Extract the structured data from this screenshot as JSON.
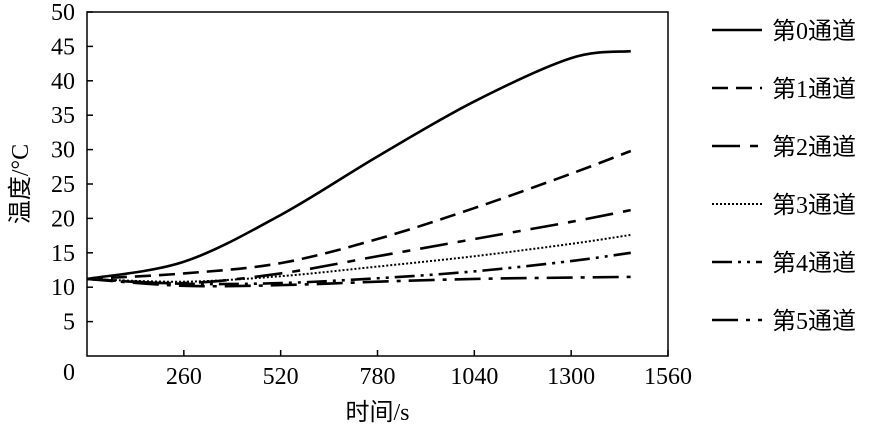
{
  "chart_data": {
    "type": "line",
    "xlabel": "时间/s",
    "ylabel": "温度/°C",
    "xlim": [
      0,
      1560
    ],
    "ylim": [
      0,
      50
    ],
    "xticks": [
      0,
      260,
      520,
      780,
      1040,
      1300,
      1560
    ],
    "yticks": [
      5,
      10,
      15,
      20,
      25,
      30,
      35,
      40,
      45,
      50
    ],
    "y0_label": "0",
    "grid": false,
    "legend_position": "right",
    "x": [
      0,
      260,
      520,
      780,
      1040,
      1300,
      1460
    ],
    "series": [
      {
        "name": "第0通道",
        "style": "solid",
        "values": [
          11.2,
          13.7,
          20.5,
          29.0,
          37.0,
          43.3,
          44.3
        ]
      },
      {
        "name": "第1通道",
        "style": "dashed",
        "values": [
          11.2,
          12.0,
          13.5,
          17.0,
          21.5,
          26.5,
          29.8
        ]
      },
      {
        "name": "第2通道",
        "style": "longdash-short",
        "values": [
          11.2,
          10.6,
          12.0,
          14.5,
          17.0,
          19.5,
          21.2
        ]
      },
      {
        "name": "第3通道",
        "style": "dotted",
        "values": [
          11.2,
          10.8,
          11.6,
          13.0,
          14.5,
          16.3,
          17.6
        ]
      },
      {
        "name": "第4通道",
        "style": "dash-dot-dot",
        "values": [
          11.2,
          10.5,
          10.6,
          11.3,
          12.3,
          13.8,
          15.0
        ]
      },
      {
        "name": "第5通道",
        "style": "dash-dot",
        "values": [
          11.2,
          10.2,
          10.3,
          10.8,
          11.2,
          11.4,
          11.5
        ]
      }
    ]
  }
}
